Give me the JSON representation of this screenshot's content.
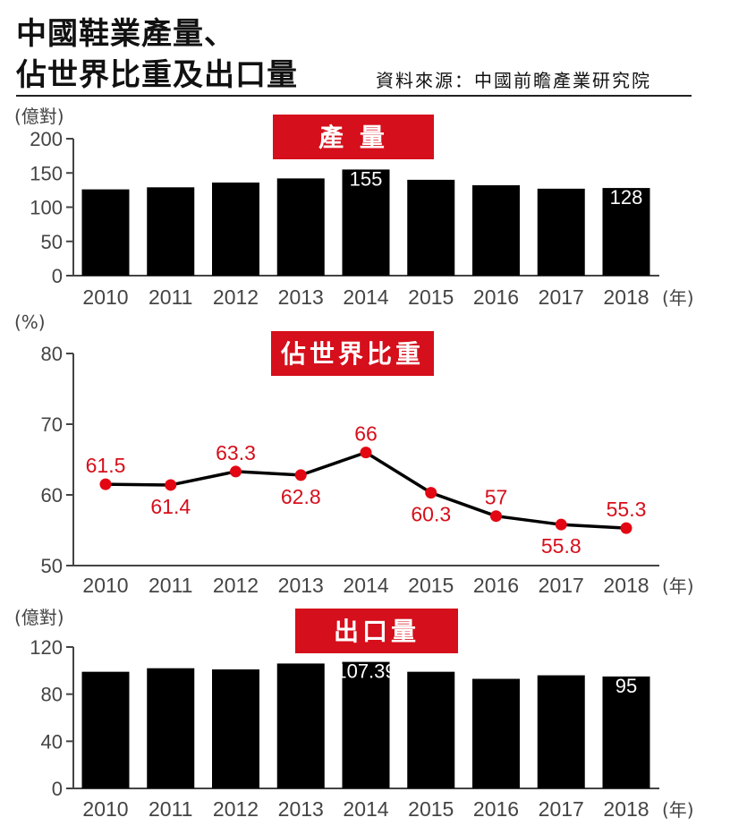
{
  "title_line1": "中國鞋業產量、",
  "title_line2": "佔世界比重及出口量",
  "source": "資料來源：中國前瞻產業研究院",
  "colors": {
    "bar": "#000000",
    "banner": "#d50f1b",
    "line": "#000000",
    "point": "#e30613",
    "label_red": "#d50f1b",
    "axis": "#444444"
  },
  "chart_data": [
    {
      "type": "bar",
      "title": "產 量",
      "ylabel": "(億對)",
      "xlabel": "(年)",
      "categories": [
        "2010",
        "2011",
        "2012",
        "2013",
        "2014",
        "2015",
        "2016",
        "2017",
        "2018"
      ],
      "values": [
        126,
        129,
        136,
        142,
        155,
        140,
        132,
        127,
        128
      ],
      "ylim": [
        0,
        200
      ],
      "yticks": [
        0,
        50,
        100,
        150,
        200
      ],
      "data_labels": [
        {
          "category": "2014",
          "text": "155"
        },
        {
          "category": "2018",
          "text": "128"
        }
      ]
    },
    {
      "type": "line",
      "title": "佔世界比重",
      "ylabel": "(%)",
      "xlabel": "(年)",
      "categories": [
        "2010",
        "2011",
        "2012",
        "2013",
        "2014",
        "2015",
        "2016",
        "2017",
        "2018"
      ],
      "values": [
        61.5,
        61.4,
        63.3,
        62.8,
        66,
        60.3,
        57,
        55.8,
        55.3
      ],
      "labels": [
        "61.5",
        "61.4",
        "63.3",
        "62.8",
        "66",
        "60.3",
        "57",
        "55.8",
        "55.3"
      ],
      "label_side": [
        "above",
        "below",
        "above",
        "below",
        "above",
        "below",
        "above",
        "below",
        "above"
      ],
      "ylim": [
        50,
        80
      ],
      "yticks": [
        50,
        60,
        70,
        80
      ]
    },
    {
      "type": "bar",
      "title": "出口量",
      "ylabel": "(億對)",
      "xlabel": "(年)",
      "categories": [
        "2010",
        "2011",
        "2012",
        "2013",
        "2014",
        "2015",
        "2016",
        "2017",
        "2018"
      ],
      "values": [
        99,
        102,
        101,
        106,
        107.39,
        99,
        93,
        96,
        95
      ],
      "ylim": [
        0,
        120
      ],
      "yticks": [
        0,
        40,
        80,
        120
      ],
      "data_labels": [
        {
          "category": "2014",
          "text": "107.39"
        },
        {
          "category": "2018",
          "text": "95"
        }
      ]
    }
  ]
}
